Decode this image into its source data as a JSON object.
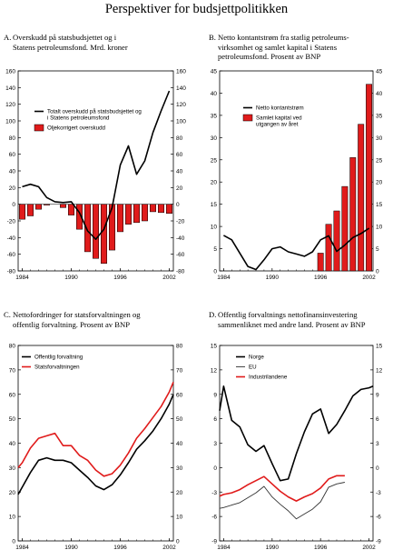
{
  "page": {
    "title": "Perspektiver for budsjettpolitikken"
  },
  "colors": {
    "black": "#000000",
    "red": "#e01b1b",
    "gray": "#333333"
  },
  "chart_data": [
    {
      "id": "A",
      "type": "bar+line",
      "letter": "A.",
      "title_lines": [
        "Overskudd på statsbudsjettet og i",
        "Statens petroleumsfond. Mrd. kroner"
      ],
      "x_ticks": [
        "1984",
        "1990",
        "1996",
        "2002"
      ],
      "y_ticks": [
        "-80",
        "-60",
        "-40",
        "-20",
        "0",
        "20",
        "40",
        "60",
        "80",
        "100",
        "120",
        "140",
        "160"
      ],
      "ylim": [
        -80,
        160
      ],
      "xlim": [
        1983.5,
        2002.5
      ],
      "x": [
        1984,
        1985,
        1986,
        1987,
        1988,
        1989,
        1990,
        1991,
        1992,
        1993,
        1994,
        1995,
        1996,
        1997,
        1998,
        1999,
        2000,
        2001,
        2002
      ],
      "series": [
        {
          "name": "Totalt overskudd på statsbudsjettet og i Statens petroleumsfond",
          "kind": "line",
          "color": "#000000",
          "values": [
            21,
            24,
            21,
            8,
            3,
            2,
            3,
            -10,
            -32,
            -42,
            -30,
            -4,
            47,
            70,
            36,
            52,
            86,
            112,
            136
          ]
        },
        {
          "name": "Oljekorrigert overskudd",
          "kind": "bar",
          "color": "#e01b1b",
          "values": [
            -18,
            -14,
            -6,
            -1,
            0,
            -4,
            -13,
            -30,
            -57,
            -65,
            -71,
            -55,
            -33,
            -24,
            -22,
            -20,
            -9,
            -10,
            -11
          ]
        }
      ]
    },
    {
      "id": "B",
      "type": "bar+line",
      "letter": "B.",
      "title_lines": [
        "Netto kontantstrøm fra statlig petroleums-",
        "virksomhet og samlet kapital i Statens",
        "petroleumsfond. Prosent av BNP"
      ],
      "x_ticks": [
        "1984",
        "1990",
        "1996",
        "2002"
      ],
      "y_ticks": [
        "0",
        "5",
        "10",
        "15",
        "20",
        "25",
        "30",
        "35",
        "40",
        "45"
      ],
      "ylim": [
        0,
        45
      ],
      "xlim": [
        1983.5,
        2002.5
      ],
      "x": [
        1984,
        1985,
        1986,
        1987,
        1988,
        1989,
        1990,
        1991,
        1992,
        1993,
        1994,
        1995,
        1996,
        1997,
        1998,
        1999,
        2000,
        2001,
        2002
      ],
      "series": [
        {
          "name": "Netto kontantstrøm",
          "kind": "line",
          "color": "#000000",
          "values": [
            8,
            7,
            4,
            1,
            0.3,
            2.5,
            5,
            5.4,
            4.3,
            3.8,
            3.3,
            4.3,
            7,
            7.9,
            4.4,
            5.8,
            7.5,
            8.4,
            9.6
          ]
        },
        {
          "name": "Samlet kapital ved utgangen av året",
          "kind": "bar",
          "color": "#e01b1b",
          "values": [
            0,
            0,
            0,
            0,
            0,
            0,
            0,
            0,
            0,
            0,
            0,
            0,
            4,
            10.5,
            13.5,
            19,
            25.5,
            33,
            42
          ]
        }
      ]
    },
    {
      "id": "C",
      "type": "line",
      "letter": "C.",
      "title_lines": [
        "Nettofordringer for statsforvaltningen og",
        "offentlig forvaltning. Prosent av BNP"
      ],
      "x_ticks": [
        "1984",
        "1990",
        "1996",
        "2002"
      ],
      "y_ticks": [
        "0",
        "10",
        "20",
        "30",
        "40",
        "50",
        "60",
        "70",
        "80"
      ],
      "ylim": [
        0,
        80
      ],
      "xlim": [
        1983.5,
        2002.5
      ],
      "x": [
        1983.5,
        1984,
        1985,
        1986,
        1987,
        1988,
        1989,
        1990,
        1991,
        1992,
        1993,
        1994,
        1995,
        1996,
        1997,
        1998,
        1999,
        2000,
        2001,
        2002,
        2002.5
      ],
      "series": [
        {
          "name": "Offentlig forvaltning",
          "color": "#000000",
          "values": [
            19,
            22,
            28,
            33,
            34,
            33,
            33,
            32,
            29,
            26,
            22.5,
            21,
            23,
            27,
            32,
            37.5,
            41,
            45,
            50,
            56,
            60
          ]
        },
        {
          "name": "Statsforvaltningen",
          "color": "#e01b1b",
          "values": [
            30,
            32,
            38,
            42,
            43,
            44,
            39,
            39,
            35,
            33,
            29,
            26.5,
            27.5,
            31,
            36,
            42,
            46,
            50.5,
            55,
            61,
            65
          ]
        }
      ]
    },
    {
      "id": "D",
      "type": "line",
      "letter": "D.",
      "title_lines": [
        "Offentlig forvaltnings nettofinansinvestering",
        "sammenliknet med andre land. Prosent av BNP"
      ],
      "x_ticks": [
        "1984",
        "1990",
        "1996",
        "2002"
      ],
      "y_ticks": [
        "-9",
        "-6",
        "-3",
        "0",
        "3",
        "6",
        "9",
        "12",
        "15"
      ],
      "ylim": [
        -9,
        15
      ],
      "xlim": [
        1983.5,
        2002.5
      ],
      "series": [
        {
          "name": "Norge",
          "color": "#000000",
          "x": [
            1983.5,
            1984,
            1985,
            1986,
            1987,
            1988,
            1989,
            1990,
            1991,
            1992,
            1993,
            1994,
            1995,
            1996,
            1997,
            1998,
            1999,
            2000,
            2001,
            2002,
            2002.5
          ],
          "values": [
            7,
            10,
            5.8,
            5,
            2.8,
            2,
            2.7,
            0.5,
            -1.6,
            -1.4,
            1.7,
            4.4,
            6.6,
            7.2,
            4.2,
            5.3,
            7,
            8.8,
            9.6,
            9.8,
            10
          ]
        },
        {
          "name": "EU",
          "color": "#333333",
          "x": [
            1983.5,
            1984,
            1985,
            1986,
            1987,
            1988,
            1989,
            1990,
            1991,
            1992,
            1993,
            1994,
            1995,
            1996,
            1997,
            1998,
            1999
          ],
          "values": [
            -5,
            -4.9,
            -4.6,
            -4.3,
            -3.7,
            -3.1,
            -2.3,
            -3.6,
            -4.5,
            -5.3,
            -6.3,
            -5.7,
            -5.1,
            -4.2,
            -2.4,
            -2.0,
            -1.8
          ]
        },
        {
          "name": "Industrilandene",
          "color": "#e01b1b",
          "x": [
            1983.5,
            1984,
            1985,
            1986,
            1987,
            1988,
            1989,
            1990,
            1991,
            1992,
            1993,
            1994,
            1995,
            1996,
            1997,
            1998,
            1999
          ],
          "values": [
            -3.5,
            -3.3,
            -3.1,
            -2.7,
            -2.1,
            -1.6,
            -1.1,
            -2.0,
            -2.9,
            -3.6,
            -4.1,
            -3.6,
            -3.2,
            -2.5,
            -1.4,
            -1.0,
            -1.0
          ]
        }
      ]
    }
  ]
}
